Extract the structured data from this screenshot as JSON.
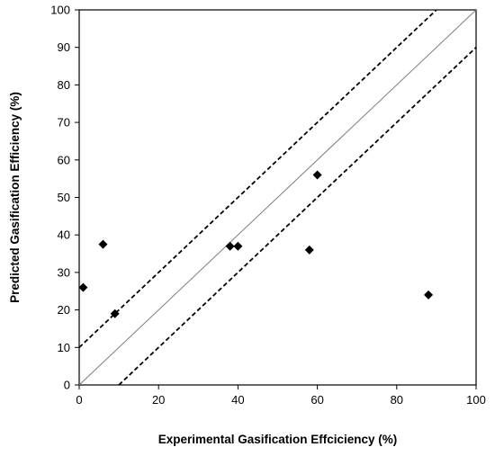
{
  "chart_data": {
    "type": "scatter",
    "title": "",
    "xlabel": "Experimental Gasification Effciciency (%)",
    "ylabel": "Predicted Gasification Efficiency (%)",
    "xlim": [
      0,
      100
    ],
    "ylim": [
      0,
      100
    ],
    "x_ticks": [
      0,
      20,
      40,
      60,
      80,
      100
    ],
    "y_ticks": [
      0,
      10,
      20,
      30,
      40,
      50,
      60,
      70,
      80,
      90,
      100
    ],
    "grid": false,
    "legend": "none",
    "marker": "diamond",
    "marker_color": "#000000",
    "series": [
      {
        "points": [
          {
            "x": 1,
            "y": 26
          },
          {
            "x": 6,
            "y": 37.5
          },
          {
            "x": 9,
            "y": 19
          },
          {
            "x": 38,
            "y": 37
          },
          {
            "x": 40,
            "y": 37
          },
          {
            "x": 58,
            "y": 36
          },
          {
            "x": 60,
            "y": 56
          },
          {
            "x": 88,
            "y": 24
          }
        ]
      }
    ],
    "reference_lines": [
      {
        "kind": "identity",
        "style": "solid",
        "color": "#7f7f7f",
        "from": [
          0,
          0
        ],
        "to": [
          100,
          100
        ]
      },
      {
        "kind": "upper-bound",
        "style": "dashed",
        "color": "#000000",
        "from": [
          0,
          10
        ],
        "to": [
          90,
          100
        ]
      },
      {
        "kind": "lower-bound",
        "style": "dashed",
        "color": "#000000",
        "from": [
          10,
          0
        ],
        "to": [
          100,
          90
        ]
      }
    ]
  }
}
